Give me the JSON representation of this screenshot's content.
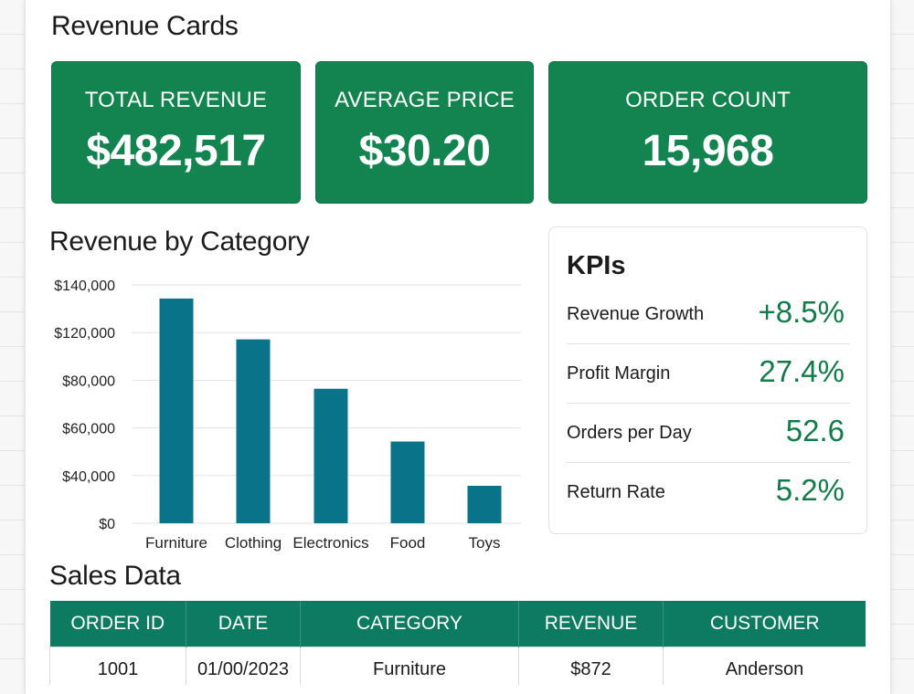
{
  "revenue_cards": {
    "title": "Revenue Cards",
    "cards": [
      {
        "label": "TOTAL REVENUE",
        "value": "$482,517"
      },
      {
        "label": "AVERAGE PRICE",
        "value": "$30.20"
      },
      {
        "label": "ORDER COUNT",
        "value": "15,968"
      }
    ],
    "card_color": "#13834f"
  },
  "chart_section": {
    "title": "Revenue by Category"
  },
  "chart_data": {
    "type": "bar",
    "title": "Revenue by Category",
    "categories": [
      "Furniture",
      "Clothing",
      "Electronics",
      "Food",
      "Toys"
    ],
    "values": [
      132000,
      108000,
      79000,
      48000,
      22000
    ],
    "y_ticks": [
      0,
      40000,
      60000,
      80000,
      120000,
      140000
    ],
    "y_tick_labels": [
      "$0",
      "$40,000",
      "$60,000",
      "$80,000",
      "$120,000",
      "$140,000"
    ],
    "ylim": [
      0,
      140000
    ],
    "grid": true,
    "bar_color": "#09738a",
    "xlabel": "",
    "ylabel": ""
  },
  "kpis": {
    "title": "KPIs",
    "items": [
      {
        "label": "Revenue Growth",
        "value": "+8.5%"
      },
      {
        "label": "Profit Margin",
        "value": "27.4%"
      },
      {
        "label": "Orders per Day",
        "value": "52.6"
      },
      {
        "label": "Return Rate",
        "value": "5.2%"
      }
    ],
    "value_color": "#137a4b"
  },
  "sales_data": {
    "title": "Sales Data",
    "columns": [
      "ORDER ID",
      "DATE",
      "CATEGORY",
      "REVENUE",
      "CUSTOMER"
    ],
    "rows": [
      [
        "1001",
        "01/00/2023",
        "Furniture",
        "$872",
        "Anderson"
      ]
    ],
    "header_color": "#0d7a62"
  }
}
